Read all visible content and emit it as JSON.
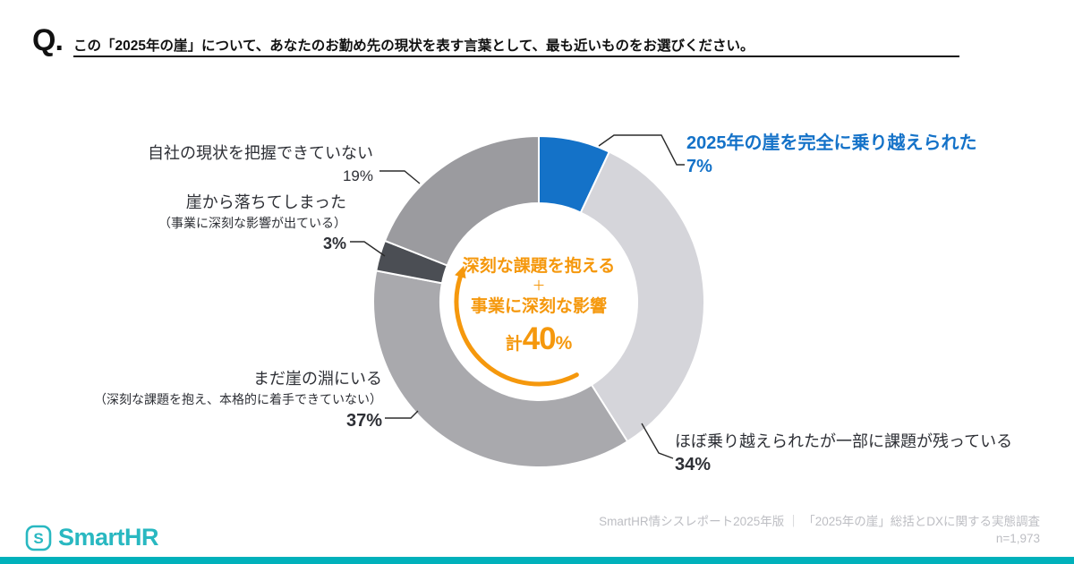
{
  "question": {
    "prefix": "Q.",
    "text": "この「2025年の崖」について、あなたのお勤め先の現状を表す言葉として、最も近いものをお選びください。"
  },
  "chart_data": {
    "type": "pie",
    "subtype": "donut",
    "title": "この「2025年の崖」について、あなたのお勤め先の現状を表す言葉として、最も近いもの",
    "unit": "%",
    "start_angle_deg": 0,
    "direction": "clockwise",
    "slices": [
      {
        "label": "2025年の崖を完全に乗り越えられた",
        "value": 7,
        "color": "#1472c8"
      },
      {
        "label": "ほぼ乗り越えられたが一部に課題が残っている",
        "value": 34,
        "color": "#d5d5da"
      },
      {
        "label": "まだ崖の淵にいる（深刻な課題を抱え、本格的に着手できていない）",
        "value": 37,
        "color": "#a9a9ad"
      },
      {
        "label": "崖から落ちてしまった（事業に深刻な影響が出ている）",
        "value": 3,
        "color": "#4b4e54"
      },
      {
        "label": "自社の現状を把握できていない",
        "value": 19,
        "color": "#9b9b9f"
      }
    ],
    "highlight_arc": {
      "slice_indexes": [
        2,
        3
      ],
      "total": 40,
      "color": "#f5980d",
      "note": "深刻な課題を抱える＋事業に深刻な影響 計40%"
    }
  },
  "labels": {
    "overcome": {
      "title": "2025年の崖を完全に乗り越えられた",
      "pct": "7%"
    },
    "almost": {
      "title": "ほぼ乗り越えられたが一部に課題が残っている",
      "pct": "34%"
    },
    "edge": {
      "title": "まだ崖の淵にいる",
      "sub": "（深刻な課題を抱え、本格的に着手できていない）",
      "pct": "37%"
    },
    "fallen": {
      "title": "崖から落ちてしまった",
      "sub": "（事業に深刻な影響が出ている）",
      "pct": "3%"
    },
    "unknown": {
      "title": "自社の現状を把握できていない",
      "pct": "19%"
    }
  },
  "center": {
    "line1": "深刻な課題を抱える",
    "plus": "＋",
    "line2": "事業に深刻な影響",
    "total_prefix": "計",
    "total_number": "40",
    "total_unit": "%"
  },
  "footer": {
    "logo_icon": "S",
    "logo_text": "SmartHR",
    "source_line": "SmartHR情シスレポート2025年版 ｜ 「2025年の崖」総括とDXに関する実態調査",
    "sample_size": "n=1,973",
    "brand_color": "#29b8c1",
    "bar_color": "#00b1bb"
  }
}
